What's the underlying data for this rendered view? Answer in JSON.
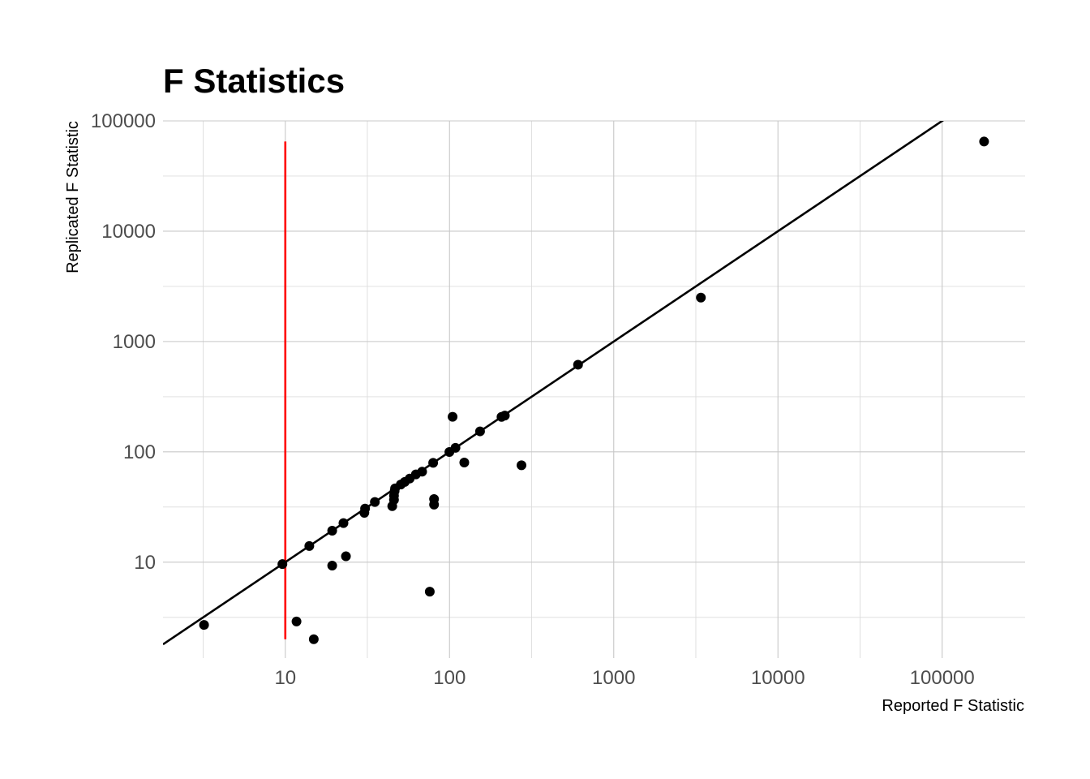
{
  "chart_data": {
    "type": "scatter",
    "title": "F Statistics",
    "xlabel": "Reported F Statistic",
    "ylabel": "Replicated F Statistic",
    "x_scale": "log10",
    "y_scale": "log10",
    "xlim": [
      1.8,
      320000
    ],
    "ylim": [
      1.35,
      100000
    ],
    "x_ticks": [
      10,
      100,
      1000,
      10000,
      100000
    ],
    "x_tick_labels": [
      "10",
      "100",
      "1000",
      "10000",
      "100000"
    ],
    "x_minor_gridlines": [
      3.16,
      31.6,
      316,
      3162,
      31623
    ],
    "y_ticks": [
      10,
      100,
      1000,
      10000,
      100000
    ],
    "y_tick_labels": [
      "10",
      "100",
      "1000",
      "10000",
      "100000"
    ],
    "y_minor_gridlines": [
      3.16,
      31.6,
      316,
      3162,
      31623
    ],
    "grid": true,
    "reference_lines": [
      {
        "kind": "identity",
        "equation": "y = x",
        "color": "#000000"
      },
      {
        "kind": "vertical",
        "x": 10,
        "y_range": [
          2,
          65000
        ],
        "color": "#ff0000"
      }
    ],
    "point_color": "#000000",
    "points": [
      {
        "x": 3.2,
        "y": 2.7
      },
      {
        "x": 9.6,
        "y": 9.6
      },
      {
        "x": 11.7,
        "y": 2.9
      },
      {
        "x": 14.9,
        "y": 2.0
      },
      {
        "x": 14.0,
        "y": 14.0
      },
      {
        "x": 19.3,
        "y": 19.3
      },
      {
        "x": 19.3,
        "y": 9.3
      },
      {
        "x": 22.6,
        "y": 22.6
      },
      {
        "x": 23.4,
        "y": 11.3
      },
      {
        "x": 30.6,
        "y": 30.6
      },
      {
        "x": 30.3,
        "y": 28.0
      },
      {
        "x": 35.1,
        "y": 35.1
      },
      {
        "x": 44.8,
        "y": 32.2
      },
      {
        "x": 45.9,
        "y": 36.7
      },
      {
        "x": 45.9,
        "y": 40.0
      },
      {
        "x": 46.3,
        "y": 44.0
      },
      {
        "x": 46.6,
        "y": 46.6
      },
      {
        "x": 50.5,
        "y": 50.5
      },
      {
        "x": 53.4,
        "y": 53.4
      },
      {
        "x": 57.2,
        "y": 57.2
      },
      {
        "x": 62.4,
        "y": 62.4
      },
      {
        "x": 68.1,
        "y": 66.1
      },
      {
        "x": 75.8,
        "y": 5.4
      },
      {
        "x": 79.5,
        "y": 79.5
      },
      {
        "x": 80.5,
        "y": 37.3
      },
      {
        "x": 80.5,
        "y": 33.2
      },
      {
        "x": 99.8,
        "y": 99.8
      },
      {
        "x": 104.4,
        "y": 208.0
      },
      {
        "x": 108.7,
        "y": 108.7
      },
      {
        "x": 123.0,
        "y": 80.0
      },
      {
        "x": 153.4,
        "y": 153.4
      },
      {
        "x": 207.3,
        "y": 207.3
      },
      {
        "x": 217.2,
        "y": 213.1
      },
      {
        "x": 274.3,
        "y": 75.5
      },
      {
        "x": 606.2,
        "y": 616.5
      },
      {
        "x": 3393.9,
        "y": 2500.0
      },
      {
        "x": 180000,
        "y": 65000
      }
    ]
  }
}
